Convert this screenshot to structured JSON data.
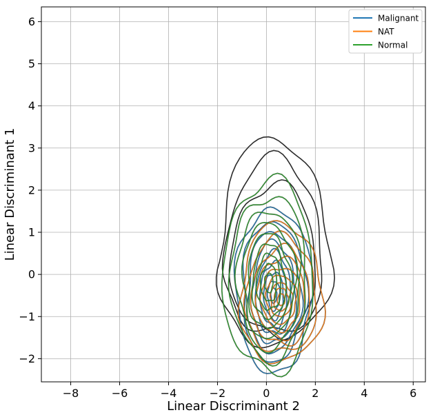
{
  "chart_data": {
    "type": "contour",
    "xlabel": "Linear Discriminant 2",
    "ylabel": "Linear Discriminant 1",
    "xlim": [
      -9.2,
      6.5
    ],
    "ylim": [
      -2.55,
      6.35
    ],
    "xticks": [
      -8,
      -6,
      -4,
      -2,
      0,
      2,
      4,
      6
    ],
    "yticks": [
      -2,
      -1,
      0,
      1,
      2,
      3,
      4,
      5,
      6
    ],
    "xtick_labels": [
      "−8",
      "−6",
      "−4",
      "−2",
      "0",
      "2",
      "4",
      "6"
    ],
    "ytick_labels": [
      "−2",
      "−1",
      "0",
      "1",
      "2",
      "3",
      "4",
      "5",
      "6"
    ],
    "grid": true,
    "legend_position": "top-right",
    "outline_color": "#2b2b2b",
    "series": [
      {
        "name": "Malignant",
        "color": "#1f77b4",
        "center": [
          0.3,
          -0.5
        ],
        "levels": [
          {
            "rx": 1.55,
            "ry": 1.8,
            "dy": 0.3
          },
          {
            "rx": 1.3,
            "ry": 1.55,
            "dy": 0.22
          },
          {
            "rx": 1.1,
            "ry": 1.35,
            "dy": 0.15
          },
          {
            "rx": 0.9,
            "ry": 1.15,
            "dy": 0.1
          },
          {
            "rx": 0.72,
            "ry": 0.95,
            "dy": 0.06
          },
          {
            "rx": 0.55,
            "ry": 0.75,
            "dy": 0.03
          },
          {
            "rx": 0.4,
            "ry": 0.55,
            "dy": 0.0
          },
          {
            "rx": 0.25,
            "ry": 0.35,
            "dy": 0.0
          },
          {
            "rx": 0.12,
            "ry": 0.18,
            "dy": 0.0
          }
        ]
      },
      {
        "name": "NAT",
        "color": "#ff7f0e",
        "center": [
          0.6,
          -0.6
        ],
        "levels": [
          {
            "rx": 1.7,
            "ry": 1.5,
            "dy": 0.3
          },
          {
            "rx": 1.45,
            "ry": 1.28,
            "dy": 0.22
          },
          {
            "rx": 1.2,
            "ry": 1.08,
            "dy": 0.15
          },
          {
            "rx": 1.0,
            "ry": 0.9,
            "dy": 0.1
          },
          {
            "rx": 0.8,
            "ry": 0.72,
            "dy": 0.06
          },
          {
            "rx": 0.62,
            "ry": 0.56,
            "dy": 0.03
          },
          {
            "rx": 0.45,
            "ry": 0.4,
            "dy": 0.0
          },
          {
            "rx": 0.3,
            "ry": 0.27,
            "dy": 0.0
          },
          {
            "rx": 0.15,
            "ry": 0.14,
            "dy": 0.0
          }
        ]
      },
      {
        "name": "Normal",
        "color": "#2ca02c",
        "center": [
          0.1,
          -0.2
        ],
        "levels": [
          {
            "rx": 1.85,
            "ry": 2.1,
            "dy": 0.35
          },
          {
            "rx": 1.55,
            "ry": 1.8,
            "dy": 0.28
          },
          {
            "rx": 1.3,
            "ry": 1.55,
            "dy": 0.2
          },
          {
            "rx": 1.08,
            "ry": 1.3,
            "dy": 0.14
          },
          {
            "rx": 0.88,
            "ry": 1.08,
            "dy": 0.09
          },
          {
            "rx": 0.68,
            "ry": 0.86,
            "dy": 0.05
          },
          {
            "rx": 0.5,
            "ry": 0.65,
            "dy": 0.02
          },
          {
            "rx": 0.33,
            "ry": 0.44,
            "dy": 0.0
          },
          {
            "rx": 0.17,
            "ry": 0.23,
            "dy": 0.0
          }
        ]
      }
    ],
    "outer_levels": [
      {
        "cx": 0.3,
        "cy": 0.3,
        "rx": 2.3,
        "ry": 2.0,
        "dy": 0.9
      },
      {
        "cx": 0.3,
        "cy": 0.3,
        "rx": 2.0,
        "ry": 1.75,
        "dy": 0.7
      },
      {
        "cx": 0.3,
        "cy": 0.1,
        "rx": 1.75,
        "ry": 1.55,
        "dy": 0.5
      }
    ]
  }
}
